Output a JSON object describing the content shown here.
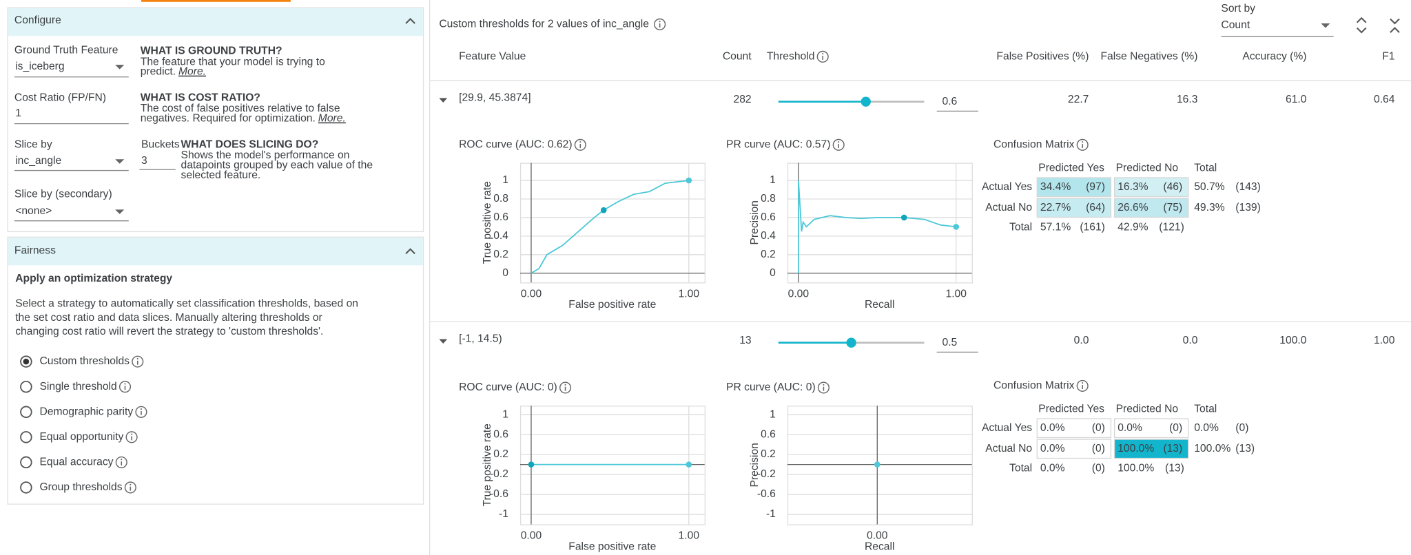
{
  "configure": {
    "title": "Configure",
    "ground_truth": {
      "label": "Ground Truth Feature",
      "value": "is_iceberg",
      "help_title": "WHAT IS GROUND TRUTH?",
      "help_lines": [
        "The feature that your model is trying to",
        "predict."
      ],
      "more": "More."
    },
    "cost_ratio": {
      "label": "Cost Ratio (FP/FN)",
      "value": 1,
      "help_title": "WHAT IS COST RATIO?",
      "help_lines": [
        "The cost of false positives relative to false",
        "negatives. Required for optimization."
      ],
      "more": "More."
    },
    "slice_by": {
      "label": "Slice by",
      "value": "inc_angle"
    },
    "buckets": {
      "label": "Buckets",
      "value": 3
    },
    "slicing_help": {
      "title": "WHAT DOES SLICING DO?",
      "lines": [
        "Shows the model's performance on",
        "datapoints grouped by each value of the",
        "selected feature."
      ]
    },
    "slice_by_secondary": {
      "label": "Slice by (secondary)",
      "value": "<none>"
    }
  },
  "fairness": {
    "title": "Fairness",
    "heading": "Apply an optimization strategy",
    "description": [
      "Select a strategy to automatically set classification thresholds, based on",
      "the set cost ratio and data slices. Manually altering thresholds or",
      "changing cost ratio will revert the strategy to 'custom thresholds'."
    ],
    "options": [
      "Custom thresholds",
      "Single threshold",
      "Demographic parity",
      "Equal opportunity",
      "Equal accuracy",
      "Group thresholds"
    ],
    "selected": 0
  },
  "thresholds": {
    "title": "Custom thresholds for 2 values of inc_angle",
    "sort_by": {
      "label": "Sort by",
      "value": "Count"
    },
    "columns": [
      "Feature Value",
      "Count",
      "Threshold",
      "False Positives (%)",
      "False Negatives (%)",
      "Accuracy (%)",
      "F1"
    ],
    "slider": {
      "min": 0,
      "max": 1
    },
    "rows": [
      {
        "feature_value": "[29.9, 45.3874]",
        "count": 282,
        "threshold": 0.6,
        "false_positives": "22.7",
        "false_negatives": "16.3",
        "accuracy": "61.0",
        "f1": "0.64",
        "confusion": {
          "title": "Confusion Matrix",
          "col_headers": [
            "Predicted Yes",
            "Predicted No",
            "Total"
          ],
          "rows": [
            {
              "label": "Actual Yes",
              "cells": [
                {
                  "pct": "34.4%",
                  "count": "(97)",
                  "color": "#b3e5ed"
                },
                {
                  "pct": "16.3%",
                  "count": "(46)",
                  "color": "#d2f0f4"
                }
              ],
              "total": [
                "50.7%",
                "(143)"
              ]
            },
            {
              "label": "Actual No",
              "cells": [
                {
                  "pct": "22.7%",
                  "count": "(64)",
                  "color": "#c6ebf1"
                },
                {
                  "pct": "26.6%",
                  "count": "(75)",
                  "color": "#bfe8ef"
                }
              ],
              "total": [
                "49.3%",
                "(139)"
              ]
            }
          ],
          "total_row": {
            "label": "Total",
            "cells": [
              "57.1%",
              "(161)",
              "42.9%",
              "(121)"
            ]
          }
        }
      },
      {
        "feature_value": "[-1, 14.5)",
        "count": 13,
        "threshold": 0.5,
        "false_positives": "0.0",
        "false_negatives": "0.0",
        "accuracy": "100.0",
        "f1": "1.00",
        "confusion": {
          "title": "Confusion Matrix",
          "col_headers": [
            "Predicted Yes",
            "Predicted No",
            "Total"
          ],
          "rows": [
            {
              "label": "Actual Yes",
              "cells": [
                {
                  "pct": "0.0%",
                  "count": "(0)",
                  "color": "#ffffff"
                },
                {
                  "pct": "0.0%",
                  "count": "(0)",
                  "color": "#ffffff"
                }
              ],
              "total": [
                "0.0%",
                "(0)"
              ]
            },
            {
              "label": "Actual No",
              "cells": [
                {
                  "pct": "0.0%",
                  "count": "(0)",
                  "color": "#ffffff"
                },
                {
                  "pct": "100.0%",
                  "count": "(13)",
                  "color": "#12b5cb"
                }
              ],
              "total": [
                "100.0%",
                "(13)"
              ]
            }
          ],
          "total_row": {
            "label": "Total",
            "cells": [
              "0.0%",
              "(0)",
              "100.0%",
              "(13)"
            ]
          }
        }
      }
    ]
  },
  "chart_data": [
    {
      "type": "line",
      "title": "ROC curve (AUC: 0.62)",
      "x_label": "False positive rate",
      "y_label": "True positive rate",
      "color": "#4dc8d8",
      "grid": true,
      "x": [
        0,
        0.05,
        0.1,
        0.15,
        0.2,
        0.3,
        0.4,
        0.46,
        0.55,
        0.65,
        0.75,
        0.85,
        1
      ],
      "values": [
        0,
        0.05,
        0.2,
        0.25,
        0.3,
        0.45,
        0.6,
        0.68,
        0.77,
        0.85,
        0.88,
        0.97,
        1
      ],
      "markers": {
        "x": [
          0.46,
          1
        ],
        "values": [
          0.68,
          1
        ]
      },
      "xlim": [
        -0.07,
        1.1
      ],
      "ylim": [
        -0.1,
        1.19
      ],
      "xticks": [
        {
          "value": 0,
          "label": "0.00"
        },
        {
          "value": 1,
          "label": "1.00"
        }
      ],
      "yticks": [
        0,
        0.2,
        0.4,
        0.6,
        0.8,
        1
      ]
    },
    {
      "type": "line",
      "title": "PR curve (AUC: 0.57)",
      "x_label": "Recall",
      "y_label": "Precision",
      "color": "#4dc8d8",
      "grid": true,
      "x": [
        0,
        0,
        0.02,
        0.03,
        0.05,
        0.1,
        0.2,
        0.3,
        0.4,
        0.5,
        0.67,
        0.8,
        0.9,
        1
      ],
      "values": [
        0,
        1,
        0.45,
        0.55,
        0.5,
        0.58,
        0.62,
        0.6,
        0.59,
        0.6,
        0.6,
        0.58,
        0.52,
        0.5
      ],
      "markers": {
        "x": [
          0.67,
          1
        ],
        "values": [
          0.6,
          0.5
        ]
      },
      "xlim": [
        -0.07,
        1.1
      ],
      "ylim": [
        -0.1,
        1.19
      ],
      "xticks": [
        {
          "value": 0,
          "label": "0.00"
        },
        {
          "value": 1,
          "label": "1.00"
        }
      ],
      "yticks": [
        0,
        0.2,
        0.4,
        0.6,
        0.8,
        1
      ]
    },
    {
      "type": "line",
      "title": "ROC curve (AUC: 0)",
      "x_label": "False positive rate",
      "y_label": "True positive rate",
      "color": "#4dc8d8",
      "grid": true,
      "x": [
        0,
        1
      ],
      "values": [
        0,
        0
      ],
      "markers": {
        "x": [
          0,
          1
        ],
        "values": [
          0,
          0
        ]
      },
      "xlim": [
        -0.07,
        1.1
      ],
      "ylim": [
        -1.2,
        1.18
      ],
      "xticks": [
        {
          "value": 0,
          "label": "0.00"
        },
        {
          "value": 1,
          "label": "1.00"
        }
      ],
      "yticks": [
        -1,
        -0.6,
        -0.2,
        0.2,
        0.6,
        1
      ]
    },
    {
      "type": "line",
      "title": "PR curve (AUC: 0)",
      "x_label": "Recall",
      "y_label": "Precision",
      "color": "#4dc8d8",
      "grid": true,
      "x": [
        0
      ],
      "values": [
        0
      ],
      "markers": {
        "x": [
          0
        ],
        "values": [
          0
        ]
      },
      "xlim": [
        -0.57,
        0.6
      ],
      "ylim": [
        -1.2,
        1.18
      ],
      "xticks": [
        {
          "value": 0,
          "label": "0.00"
        }
      ],
      "yticks": [
        -1,
        -0.6,
        -0.2,
        0.2,
        0.6,
        1
      ]
    }
  ]
}
